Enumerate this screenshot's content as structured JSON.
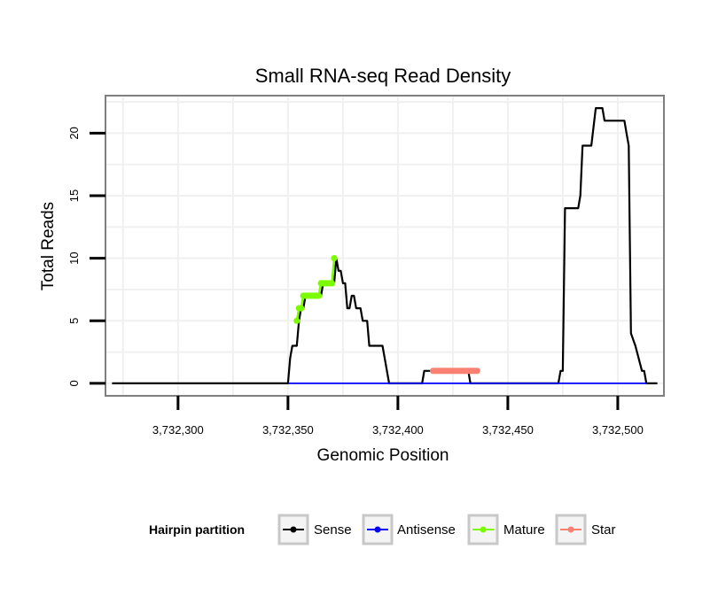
{
  "chart_data": {
    "type": "line",
    "title": "Small RNA-seq Read Density",
    "xlabel": "Genomic Position",
    "ylabel": "Total Reads",
    "xlim": [
      3732267,
      3732521
    ],
    "ylim": [
      -1,
      23
    ],
    "x_ticks": [
      3732300,
      3732350,
      3732400,
      3732450,
      3732500
    ],
    "x_tick_labels": [
      "3,732,300",
      "3,732,350",
      "3,732,400",
      "3,732,450",
      "3,732,500"
    ],
    "y_ticks": [
      0,
      5,
      10,
      15,
      20
    ],
    "y_tick_labels": [
      "0",
      "5",
      "10",
      "15",
      "20"
    ],
    "grid": true,
    "legend": {
      "title": "Hairpin partition",
      "position": "bottom",
      "entries": [
        {
          "name": "Sense",
          "color": "#000000"
        },
        {
          "name": "Antisense",
          "color": "#0000ff"
        },
        {
          "name": "Mature",
          "color": "#7cfc00"
        },
        {
          "name": "Star",
          "color": "#fa8072"
        }
      ]
    },
    "series": [
      {
        "name": "Sense",
        "color": "#000000",
        "points": [
          [
            3732270,
            0
          ],
          [
            3732350,
            0
          ],
          [
            3732351,
            2
          ],
          [
            3732352,
            3
          ],
          [
            3732354,
            3
          ],
          [
            3732355,
            5
          ],
          [
            3732356,
            6
          ],
          [
            3732357,
            6
          ],
          [
            3732358,
            7
          ],
          [
            3732365,
            7
          ],
          [
            3732366,
            8
          ],
          [
            3732371,
            8
          ],
          [
            3732372,
            10
          ],
          [
            3732373,
            9
          ],
          [
            3732374,
            9
          ],
          [
            3732375,
            8
          ],
          [
            3732376,
            8
          ],
          [
            3732377,
            6
          ],
          [
            3732378,
            6
          ],
          [
            3732379,
            7
          ],
          [
            3732380,
            7
          ],
          [
            3732381,
            6
          ],
          [
            3732383,
            6
          ],
          [
            3732384,
            5
          ],
          [
            3732386,
            5
          ],
          [
            3732387,
            3
          ],
          [
            3732393,
            3
          ],
          [
            3732394,
            2
          ],
          [
            3732395,
            1
          ],
          [
            3732396,
            0
          ],
          [
            3732411,
            0
          ],
          [
            3732412,
            1
          ],
          [
            3732432,
            1
          ],
          [
            3732433,
            0
          ],
          [
            3732473,
            0
          ],
          [
            3732474,
            1
          ],
          [
            3732475,
            1
          ],
          [
            3732476,
            14
          ],
          [
            3732482,
            14
          ],
          [
            3732483,
            15
          ],
          [
            3732484,
            19
          ],
          [
            3732488,
            19
          ],
          [
            3732490,
            22
          ],
          [
            3732493,
            22
          ],
          [
            3732494,
            21
          ],
          [
            3732503,
            21
          ],
          [
            3732504,
            20
          ],
          [
            3732505,
            19
          ],
          [
            3732506,
            4
          ],
          [
            3732508,
            3
          ],
          [
            3732511,
            1
          ],
          [
            3732512,
            1
          ],
          [
            3732513,
            0
          ],
          [
            3732518,
            0
          ]
        ]
      },
      {
        "name": "Antisense",
        "color": "#0000ff",
        "points": [
          [
            3732350,
            0
          ],
          [
            3732513,
            0
          ]
        ]
      },
      {
        "name": "Mature",
        "color": "#7cfc00",
        "points": [
          [
            3732354,
            5
          ],
          [
            3732355,
            6
          ],
          [
            3732356,
            6
          ],
          [
            3732357,
            7
          ],
          [
            3732358,
            7
          ],
          [
            3732359,
            7
          ],
          [
            3732360,
            7
          ],
          [
            3732361,
            7
          ],
          [
            3732362,
            7
          ],
          [
            3732363,
            7
          ],
          [
            3732364,
            7
          ],
          [
            3732365,
            8
          ],
          [
            3732366,
            8
          ],
          [
            3732367,
            8
          ],
          [
            3732368,
            8
          ],
          [
            3732369,
            8
          ],
          [
            3732370,
            8
          ],
          [
            3732371,
            10
          ]
        ]
      },
      {
        "name": "Star",
        "color": "#fa8072",
        "points": [
          [
            3732416,
            1
          ],
          [
            3732417,
            1
          ],
          [
            3732418,
            1
          ],
          [
            3732419,
            1
          ],
          [
            3732420,
            1
          ],
          [
            3732421,
            1
          ],
          [
            3732422,
            1
          ],
          [
            3732423,
            1
          ],
          [
            3732424,
            1
          ],
          [
            3732425,
            1
          ],
          [
            3732426,
            1
          ],
          [
            3732427,
            1
          ],
          [
            3732428,
            1
          ],
          [
            3732429,
            1
          ],
          [
            3732430,
            1
          ],
          [
            3732431,
            1
          ],
          [
            3732432,
            1
          ],
          [
            3732433,
            1
          ],
          [
            3732434,
            1
          ],
          [
            3732435,
            1
          ],
          [
            3732436,
            1
          ]
        ]
      }
    ]
  }
}
